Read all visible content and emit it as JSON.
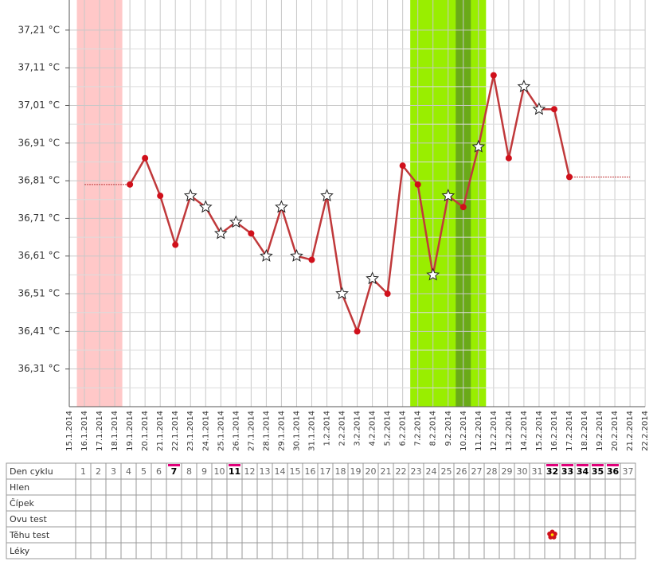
{
  "chart_data": {
    "type": "line",
    "x": [
      "15.1.2014",
      "16.1.2014",
      "17.1.2014",
      "18.1.2014",
      "19.1.2014",
      "20.1.2014",
      "21.1.2014",
      "22.1.2014",
      "23.1.2014",
      "24.1.2014",
      "25.1.2014",
      "26.1.2014",
      "27.1.2014",
      "28.1.2014",
      "29.1.2014",
      "30.1.2014",
      "31.1.2014",
      "1.2.2014",
      "2.2.2014",
      "3.2.2014",
      "4.2.2014",
      "5.2.2014",
      "6.2.2014",
      "7.2.2014",
      "8.2.2014",
      "9.2.2014",
      "10.2.2014",
      "11.2.2014",
      "12.2.2014",
      "13.2.2014",
      "14.2.2014",
      "15.2.2014",
      "16.2.2014",
      "17.2.2014",
      "18.2.2014",
      "19.2.2014",
      "20.2.2014",
      "21.2.2014",
      "22.2.2014"
    ],
    "series": [
      {
        "color": "#c0393b",
        "values": [
          null,
          null,
          null,
          null,
          36.8,
          36.87,
          36.77,
          36.64,
          36.77,
          36.74,
          36.67,
          36.7,
          36.67,
          36.61,
          36.74,
          36.61,
          36.6,
          36.77,
          36.51,
          36.41,
          36.55,
          36.51,
          36.85,
          36.8,
          36.56,
          36.77,
          36.74,
          36.9,
          37.09,
          36.87,
          37.06,
          37.0,
          37.0,
          36.82,
          null,
          null,
          null,
          null,
          null
        ],
        "markers": [
          null,
          null,
          null,
          null,
          "dot",
          "dot",
          "dot",
          "dot",
          "star",
          "star",
          "star",
          "star",
          "dot",
          "star",
          "star",
          "star",
          "dot",
          "star",
          "star",
          "dot",
          "star",
          "dot",
          "dot",
          "dot",
          "star",
          "star",
          "dot",
          "star",
          "dot",
          "dot",
          "star",
          "star",
          "dot",
          "dot",
          null,
          null,
          null,
          null,
          null
        ]
      }
    ],
    "ylim": [
      36.21,
      37.29
    ],
    "yticks": [
      {
        "value": 36.31,
        "label": "36,31 °C"
      },
      {
        "value": 36.41,
        "label": "36,41 °C"
      },
      {
        "value": 36.51,
        "label": "36,51 °C"
      },
      {
        "value": 36.61,
        "label": "36,61 °C"
      },
      {
        "value": 36.71,
        "label": "36,71 °C"
      },
      {
        "value": 36.81,
        "label": "36,81 °C"
      },
      {
        "value": 36.91,
        "label": "36,91 °C"
      },
      {
        "value": 37.01,
        "label": "37,01 °C"
      },
      {
        "value": 37.11,
        "label": "37,11 °C"
      },
      {
        "value": 37.21,
        "label": "37,21 °C"
      }
    ],
    "grid": true,
    "bands": [
      {
        "from": 1,
        "to": 3,
        "color": "#ffc8c8"
      },
      {
        "from": 23,
        "to": 27,
        "color": "#99ee00"
      },
      {
        "from": 26,
        "to": 26,
        "color": "#6aaa18"
      }
    ]
  },
  "table": {
    "row_labels": [
      "Den cyklu",
      "Hlen",
      "Čípek",
      "Ovu test",
      "Těhu test",
      "Léky"
    ],
    "days": [
      1,
      2,
      3,
      4,
      5,
      6,
      7,
      8,
      9,
      10,
      11,
      12,
      13,
      14,
      15,
      16,
      17,
      18,
      19,
      20,
      21,
      22,
      23,
      24,
      25,
      26,
      27,
      28,
      29,
      30,
      31,
      32,
      33,
      34,
      35,
      36,
      37
    ],
    "marked_days": [
      7,
      11,
      32,
      33,
      34,
      35,
      36
    ],
    "pregnancy_test_days": [
      32
    ]
  }
}
